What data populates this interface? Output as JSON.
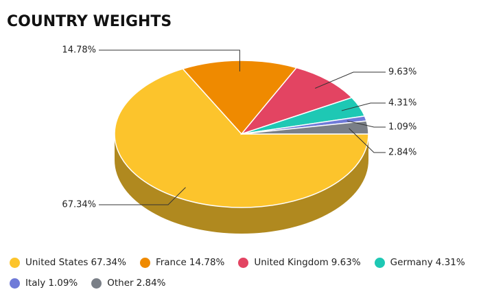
{
  "chart_data": {
    "type": "pie",
    "title": "COUNTRY WEIGHTS",
    "categories": [
      "United States",
      "France",
      "United Kingdom",
      "Germany",
      "Italy",
      "Other"
    ],
    "values": [
      67.34,
      14.78,
      9.63,
      4.31,
      1.09,
      2.84
    ],
    "value_labels": [
      "67.34%",
      "14.78%",
      "9.63%",
      "4.31%",
      "1.09%",
      "2.84%"
    ],
    "colors": [
      "#fcc42c",
      "#ef8a00",
      "#e34462",
      "#1ec8b4",
      "#6f7ad8",
      "#7a7f87"
    ],
    "legend": "bottom"
  }
}
